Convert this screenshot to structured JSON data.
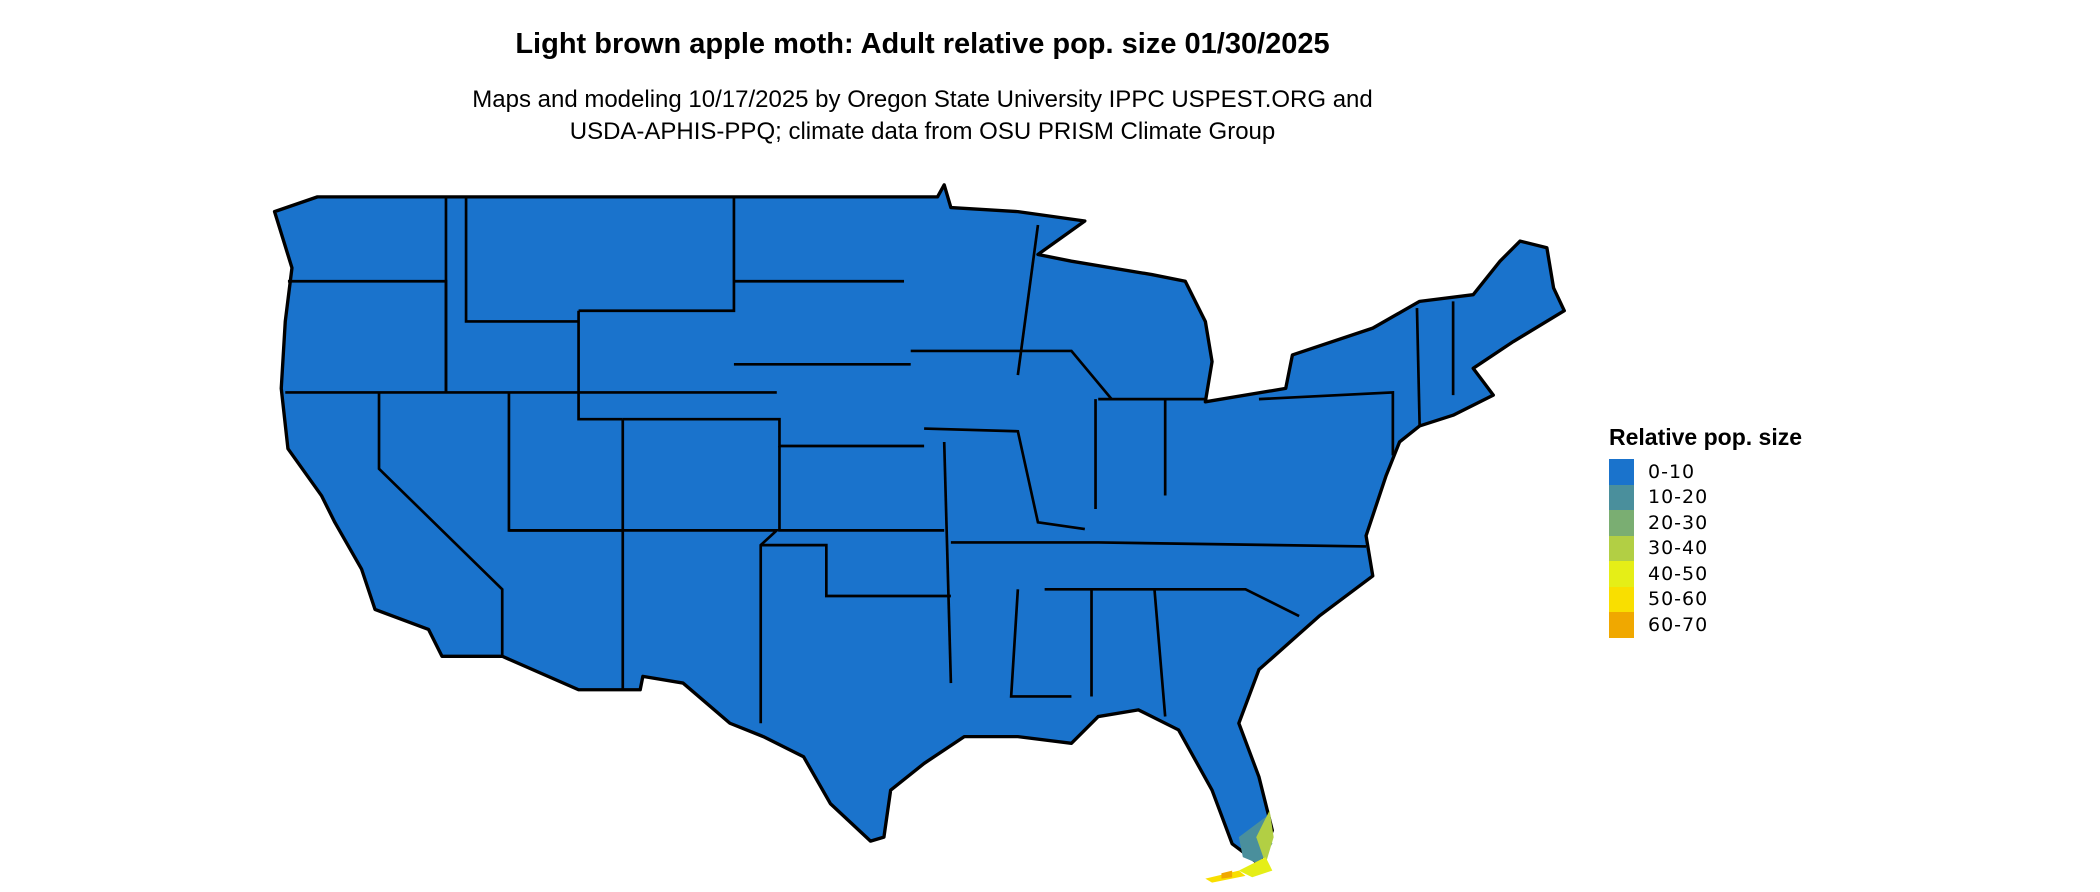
{
  "title": "Light brown apple moth: Adult relative pop. size 01/30/2025",
  "subtitle_lines": [
    "Maps and modeling 10/17/2025 by Oregon State University IPPC USPEST.ORG and",
    "USDA-APHIS-PPQ; climate data from OSU PRISM Climate Group"
  ],
  "legend": {
    "title": "Relative pop. size",
    "items": [
      {
        "label": "0-10",
        "color": "#1a73cc"
      },
      {
        "label": "10-20",
        "color": "#4a8f9c"
      },
      {
        "label": "20-30",
        "color": "#7aae72"
      },
      {
        "label": "30-40",
        "color": "#b2cf44"
      },
      {
        "label": "40-50",
        "color": "#e5ee17"
      },
      {
        "label": "50-60",
        "color": "#f9df00"
      },
      {
        "label": "60-70",
        "color": "#f0a800"
      }
    ]
  },
  "map": {
    "region": "Contiguous United States",
    "dominant_class": "0-10",
    "hotspot": "South Florida and Florida Keys"
  }
}
